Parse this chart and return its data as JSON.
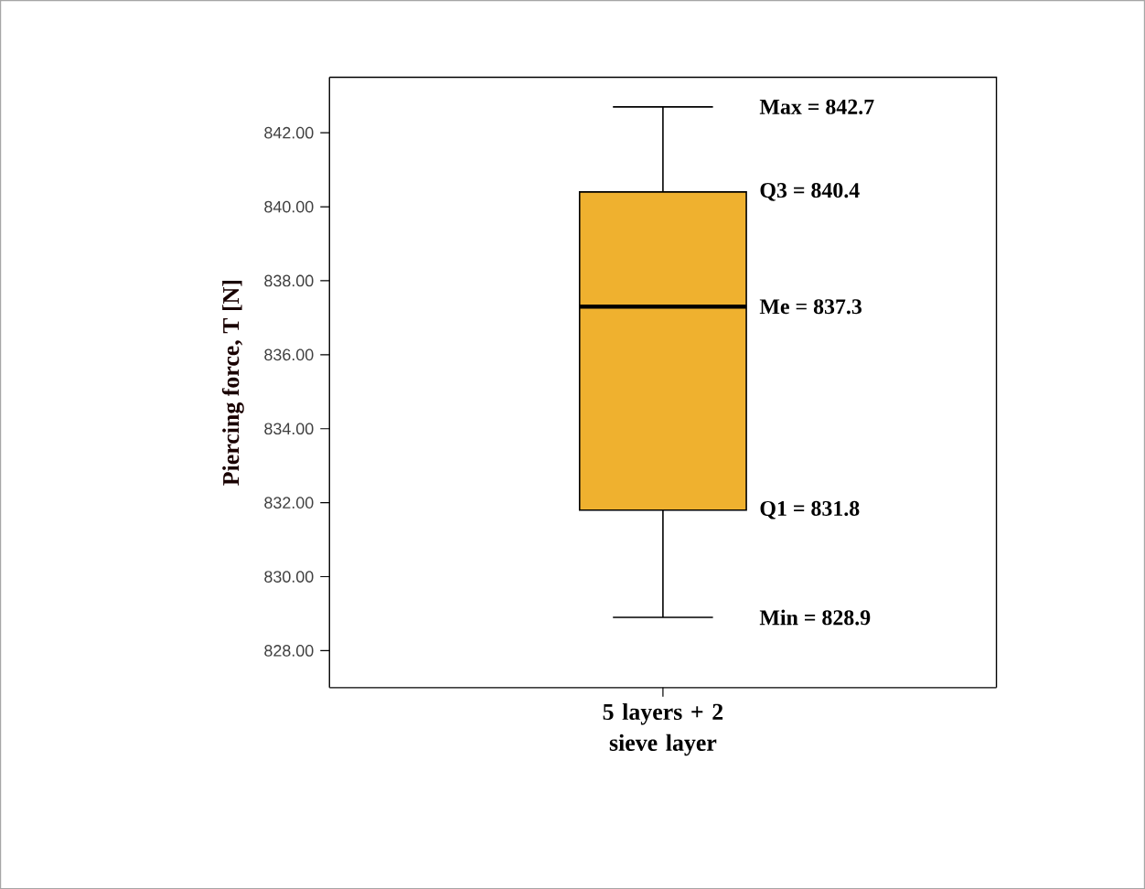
{
  "chart_data": {
    "type": "box",
    "ylabel": "Piercing force, T [N]",
    "categories": [
      "5 layers + 2 sieve layer"
    ],
    "boxes": [
      {
        "low": 828.9,
        "q1": 831.8,
        "median": 837.3,
        "q3": 840.4,
        "high": 842.7
      }
    ],
    "color": "#efb12f",
    "ylim": [
      827.0,
      843.5
    ],
    "yticks": [
      {
        "value": 828,
        "label": "828.00"
      },
      {
        "value": 830,
        "label": "830.00"
      },
      {
        "value": 832,
        "label": "832.00"
      },
      {
        "value": 834,
        "label": "834.00"
      },
      {
        "value": 836,
        "label": "836.00"
      },
      {
        "value": 838,
        "label": "838.00"
      },
      {
        "value": 840,
        "label": "840.00"
      },
      {
        "value": 842,
        "label": "842.00"
      }
    ],
    "annotations": [
      "Max = 842.7",
      "Q3 = 840.4",
      "Me = 837.3",
      "Q1 = 831.8",
      "Min = 828.9"
    ]
  }
}
